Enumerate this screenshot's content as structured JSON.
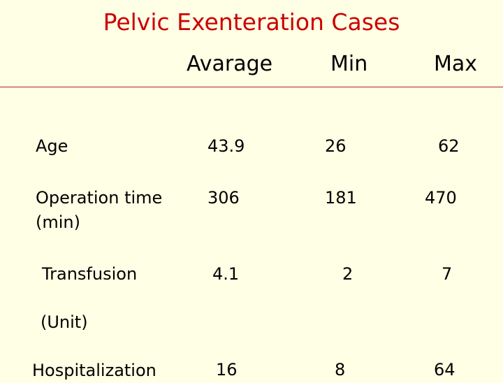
{
  "slide": {
    "title": "Pelvic Exenteration Cases",
    "title_color": "#cc0000",
    "background_color": "#ffffe5"
  },
  "table": {
    "columns": [
      "Avarage",
      "Min",
      "Max"
    ],
    "rows": [
      {
        "label": "Age",
        "avg": "43.9",
        "min": "26",
        "max": "62"
      },
      {
        "label": "Operation time",
        "label2": "(min)",
        "avg": "306",
        "min": "181",
        "max": "470"
      },
      {
        "label": "Transfusion",
        "label2": "(Unit)",
        "avg": "4.1",
        "min": "2",
        "max": "7"
      },
      {
        "label": "Hospitalization",
        "avg": "16",
        "min": "8",
        "max": "64"
      }
    ]
  }
}
